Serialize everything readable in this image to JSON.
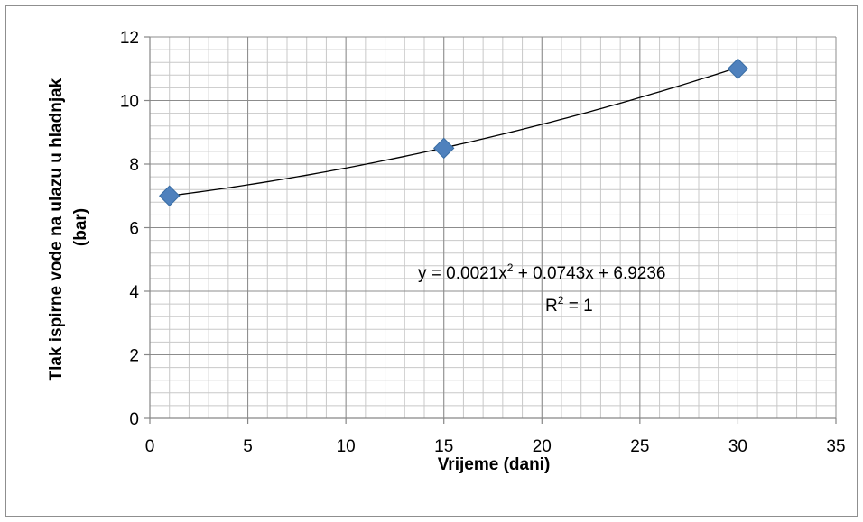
{
  "chart_data": {
    "type": "scatter",
    "title": "",
    "xlabel": "Vrijeme (dani)",
    "ylabel_lines": [
      "Tlak ispirne vode na ulazu u hladnjak",
      "(bar)"
    ],
    "xlim": [
      0,
      35
    ],
    "ylim": [
      0,
      12
    ],
    "x_ticks": [
      0,
      5,
      10,
      15,
      20,
      25,
      30,
      35
    ],
    "y_ticks": [
      0,
      2,
      4,
      6,
      8,
      10,
      12
    ],
    "grid": true,
    "legend": "none",
    "series": [
      {
        "marker": "diamond",
        "color": "#4f81bd",
        "points": [
          {
            "x": 1,
            "y": 7
          },
          {
            "x": 15,
            "y": 8.5
          },
          {
            "x": 30,
            "y": 11
          }
        ]
      }
    ],
    "trendline": {
      "type": "polynomial",
      "order": 2,
      "coefficients": [
        0.0021,
        0.0743,
        6.9236
      ],
      "x_range": [
        1,
        30
      ],
      "equation_parts": [
        "y = 0.0021x",
        "2",
        " + 0.0743x + 6.9236"
      ],
      "r2_parts": [
        "R",
        "2",
        " = 1"
      ]
    }
  }
}
